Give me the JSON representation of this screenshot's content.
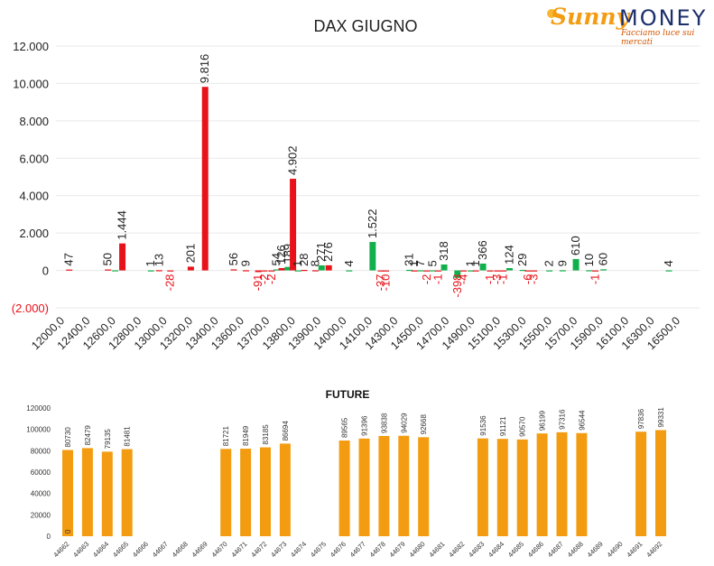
{
  "logo": {
    "brand_part1": "Sunny",
    "brand_part2": "MONEY",
    "tagline": "Facciamo luce sui mercati",
    "colors": {
      "sunny": "#f39c12",
      "money": "#1c2f6b",
      "tagline": "#d35400"
    }
  },
  "chart_data": [
    {
      "type": "bar",
      "title": "DAX GIUGNO",
      "xlabel": "",
      "ylabel": "",
      "ylim": [
        -2000,
        12000
      ],
      "yticks": [
        12000,
        10000,
        8000,
        6000,
        4000,
        2000,
        0,
        -2000
      ],
      "ytick_labels": [
        "12.000",
        "10.000",
        "8.000",
        "6.000",
        "4.000",
        "2.000",
        "0",
        "(2.000)"
      ],
      "tick_labels": [
        "12000,0",
        "12400,0",
        "12600,0",
        "12800,0",
        "13000,0",
        "13200,0",
        "13400,0",
        "13600,0",
        "13700,0",
        "13800,0",
        "13900,0",
        "14000,0",
        "14100,0",
        "14300,0",
        "14500,0",
        "14700,0",
        "14900,0",
        "15100,0",
        "15300,0",
        "15500,0",
        "15700,0",
        "15900,0",
        "16100,0",
        "16300,0",
        "16500,0"
      ],
      "grid": true,
      "colors": {
        "positive_red": "#e8121a",
        "positive_green": "#12b04c",
        "negative_label": "#e8121a"
      },
      "bars": [
        {
          "pos": 1.3,
          "value": 47,
          "label": "47",
          "color": "red"
        },
        {
          "pos": 5.1,
          "value": 50,
          "label": "50",
          "color": "red"
        },
        {
          "pos": 5.8,
          "value": 6,
          "label": "",
          "color": "green"
        },
        {
          "pos": 6.5,
          "value": 1444,
          "label": "1.444",
          "color": "red"
        },
        {
          "pos": 9.3,
          "value": 1,
          "label": "1",
          "color": "green"
        },
        {
          "pos": 10.1,
          "value": 13,
          "label": "13",
          "color": "red"
        },
        {
          "pos": 11.2,
          "value": -28,
          "label": "-28",
          "color": "red"
        },
        {
          "pos": 13.2,
          "value": 201,
          "label": "201",
          "color": "red"
        },
        {
          "pos": 14.6,
          "value": 9816,
          "label": "9.816",
          "color": "red"
        },
        {
          "pos": 17.4,
          "value": 56,
          "label": "56",
          "color": "red"
        },
        {
          "pos": 18.6,
          "value": 9,
          "label": "9",
          "color": "red"
        },
        {
          "pos": 19.8,
          "value": -91,
          "label": "-91",
          "color": "red"
        },
        {
          "pos": 20.4,
          "value": -2,
          "label": "-2",
          "color": "red"
        },
        {
          "pos": 21.1,
          "value": -2,
          "label": "-2",
          "color": "red"
        },
        {
          "pos": 21.6,
          "value": 54,
          "label": "54",
          "color": "green"
        },
        {
          "pos": 22.1,
          "value": 126,
          "label": "126",
          "color": "red"
        },
        {
          "pos": 22.7,
          "value": 189,
          "label": "189",
          "color": "green"
        },
        {
          "pos": 23.2,
          "value": 4902,
          "label": "4.902",
          "color": "red"
        },
        {
          "pos": 23.7,
          "value": 1,
          "label": "1",
          "color": "green"
        },
        {
          "pos": 24.3,
          "value": 28,
          "label": "28",
          "color": "red"
        },
        {
          "pos": 25.4,
          "value": 8,
          "label": "8",
          "color": "red"
        },
        {
          "pos": 26.0,
          "value": 271,
          "label": "271",
          "color": "green"
        },
        {
          "pos": 26.7,
          "value": 276,
          "label": "276",
          "color": "red"
        },
        {
          "pos": 28.7,
          "value": 4,
          "label": "4",
          "color": "green"
        },
        {
          "pos": 31.0,
          "value": 1522,
          "label": "1.522",
          "color": "green"
        },
        {
          "pos": 31.8,
          "value": -37,
          "label": "-37",
          "color": "red"
        },
        {
          "pos": 32.3,
          "value": -10,
          "label": "-10",
          "color": "red"
        },
        {
          "pos": 34.6,
          "value": 31,
          "label": "31",
          "color": "green"
        },
        {
          "pos": 35.1,
          "value": 1,
          "label": "1",
          "color": "red"
        },
        {
          "pos": 35.7,
          "value": 7,
          "label": "7",
          "color": "green"
        },
        {
          "pos": 36.3,
          "value": -2,
          "label": "-2",
          "color": "red"
        },
        {
          "pos": 36.9,
          "value": 5,
          "label": "5",
          "color": "green"
        },
        {
          "pos": 37.4,
          "value": -1,
          "label": "-1",
          "color": "red"
        },
        {
          "pos": 38.0,
          "value": 318,
          "label": "318",
          "color": "green"
        },
        {
          "pos": 39.3,
          "value": -398,
          "label": "-398",
          "color": "green"
        },
        {
          "pos": 39.9,
          "value": -4,
          "label": "-4",
          "color": "red"
        },
        {
          "pos": 40.6,
          "value": 1,
          "label": "1",
          "color": "green"
        },
        {
          "pos": 41.1,
          "value": 1,
          "label": "1",
          "color": "red"
        },
        {
          "pos": 41.8,
          "value": 366,
          "label": "366",
          "color": "green"
        },
        {
          "pos": 42.5,
          "value": -1,
          "label": "-1",
          "color": "red"
        },
        {
          "pos": 43.2,
          "value": -3,
          "label": "-3",
          "color": "red"
        },
        {
          "pos": 43.8,
          "value": -1,
          "label": "-1",
          "color": "red"
        },
        {
          "pos": 44.4,
          "value": 124,
          "label": "124",
          "color": "green"
        },
        {
          "pos": 45.7,
          "value": 29,
          "label": "29",
          "color": "green"
        },
        {
          "pos": 46.2,
          "value": -6,
          "label": "-6",
          "color": "red"
        },
        {
          "pos": 46.8,
          "value": -3,
          "label": "-3",
          "color": "red"
        },
        {
          "pos": 48.3,
          "value": 2,
          "label": "2",
          "color": "green"
        },
        {
          "pos": 49.6,
          "value": 9,
          "label": "9",
          "color": "green"
        },
        {
          "pos": 50.9,
          "value": 610,
          "label": "610",
          "color": "green"
        },
        {
          "pos": 52.2,
          "value": 10,
          "label": "10",
          "color": "green"
        },
        {
          "pos": 52.8,
          "value": -1,
          "label": "-1",
          "color": "red"
        },
        {
          "pos": 53.6,
          "value": 60,
          "label": "60",
          "color": "green"
        },
        {
          "pos": 60.0,
          "value": 4,
          "label": "4",
          "color": "green"
        }
      ],
      "n_slots": 63
    },
    {
      "type": "bar",
      "title": "FUTURE",
      "xlabel": "",
      "ylabel": "",
      "ylim": [
        0,
        120000
      ],
      "yticks": [
        0,
        20000,
        40000,
        60000,
        80000,
        100000,
        120000
      ],
      "ytick_labels": [
        "0",
        "20000",
        "40000",
        "60000",
        "80000",
        "100000",
        "120000"
      ],
      "grid": false,
      "color": "#f39c12",
      "categories": [
        "44662",
        "44663",
        "44664",
        "44665",
        "44666",
        "44667",
        "44668",
        "44669",
        "44670",
        "44671",
        "44672",
        "44673",
        "44674",
        "44675",
        "44676",
        "44677",
        "44678",
        "44679",
        "44680",
        "44681",
        "44682",
        "44683",
        "44684",
        "44685",
        "44686",
        "44687",
        "44688",
        "44689",
        "44690",
        "44691",
        "44692"
      ],
      "values": [
        80730,
        82479,
        79135,
        81481,
        null,
        null,
        null,
        null,
        81721,
        81949,
        83185,
        86694,
        null,
        null,
        89565,
        91396,
        93838,
        94029,
        92668,
        null,
        null,
        91536,
        91121,
        90570,
        96199,
        97316,
        96544,
        null,
        null,
        97836,
        99331
      ],
      "labels": [
        "80730",
        "82479",
        "79135",
        "81481",
        "",
        "",
        "",
        "",
        "81721",
        "81949",
        "83185",
        "86694",
        "",
        "",
        "89565",
        "91396",
        "93838",
        "94029",
        "92668",
        "",
        "",
        "91536",
        "91121",
        "90570",
        "96199",
        "97316",
        "96544",
        "",
        "",
        "97836",
        "99331"
      ],
      "extra_label": {
        "category_index": 0,
        "text": "0"
      }
    }
  ]
}
